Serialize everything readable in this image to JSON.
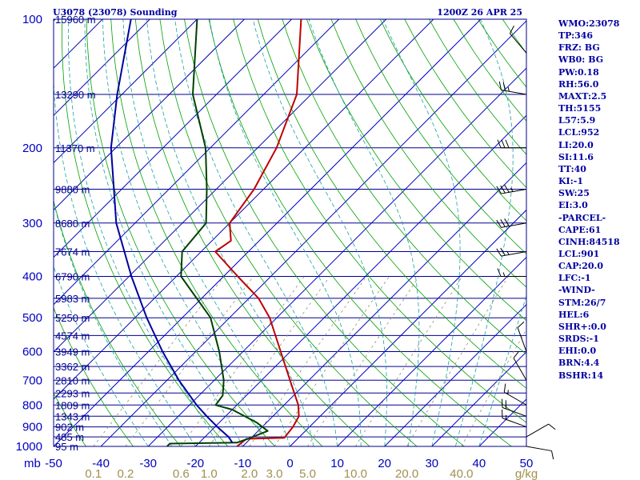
{
  "header": {
    "station": "U3078 (23078) Sounding",
    "time": "1200Z 26 APR 25"
  },
  "stats": [
    "WMO:23078",
    "TP:346",
    "FRZ: BG",
    "WB0: BG",
    "PW:0.18",
    "RH:56.0",
    "MAXT:2.5",
    "TH:5155",
    "L57:5.9",
    "LCL:952",
    "LI:20.0",
    "SI:11.6",
    "TT:40",
    "KI:-1",
    "SW:25",
    "EI:3.0",
    "-PARCEL-",
    "CAPE:61",
    "CINH:84518",
    "LCL:901",
    "CAP:20.0",
    "LFC:-1",
    "-WIND-",
    "STM:26/7",
    "HEL:6",
    "SHR+:0.0",
    "SRDS:-1",
    "EHI:0.0",
    "BRN:4.4",
    "BSHR:14"
  ],
  "chart_data": {
    "type": "line",
    "title": "",
    "xlabel": "",
    "ylabel": "mb",
    "units": {
      "pressure": "mb",
      "mixing_ratio": "g/kg"
    },
    "pressure_axis": {
      "scale": "log",
      "range": [
        1000,
        100
      ],
      "tick_labels": [
        "100",
        "200",
        "300",
        "400",
        "500",
        "600",
        "700",
        "800",
        "900",
        "1000"
      ]
    },
    "temperature_axis": {
      "range": [
        -50,
        50
      ],
      "skew_deg": 45,
      "tick_labels": [
        "-50",
        "-40",
        "-30",
        "-20",
        "-10",
        "0",
        "10",
        "20",
        "30",
        "40",
        "50"
      ]
    },
    "mixing_ratio_labels": [
      "0.1",
      "0.2",
      "0.6",
      "1.0",
      "2.0",
      "3.0",
      "5.0",
      "10.0",
      "20.0",
      "40.0"
    ],
    "height_levels": [
      {
        "p": 100,
        "label": "15960 m"
      },
      {
        "p": 150,
        "label": "13290 m"
      },
      {
        "p": 200,
        "label": "11370 m"
      },
      {
        "p": 250,
        "label": "9880 m"
      },
      {
        "p": 300,
        "label": "8680 m"
      },
      {
        "p": 350,
        "label": "7674 m"
      },
      {
        "p": 400,
        "label": "6790 m"
      },
      {
        "p": 450,
        "label": "5983 m"
      },
      {
        "p": 500,
        "label": "5250 m"
      },
      {
        "p": 550,
        "label": "4574 m"
      },
      {
        "p": 600,
        "label": "3949 m"
      },
      {
        "p": 650,
        "label": "3362 m"
      },
      {
        "p": 700,
        "label": "2810 m"
      },
      {
        "p": 750,
        "label": "2293 m"
      },
      {
        "p": 800,
        "label": "1809 m"
      },
      {
        "p": 850,
        "label": "1343 m"
      },
      {
        "p": 900,
        "label": "902 m"
      },
      {
        "p": 950,
        "label": "485 m"
      },
      {
        "p": 1000,
        "label": "95 m"
      }
    ],
    "series": [
      {
        "key": "temperature",
        "color": "#c00000",
        "points": [
          [
            1000,
            -11.2
          ],
          [
            960,
            -10.8
          ],
          [
            955,
            -3.0
          ],
          [
            900,
            -3.5
          ],
          [
            850,
            -4.5
          ],
          [
            800,
            -7.0
          ],
          [
            700,
            -14.0
          ],
          [
            600,
            -22.0
          ],
          [
            500,
            -31.5
          ],
          [
            450,
            -38.0
          ],
          [
            400,
            -47.0
          ],
          [
            350,
            -57.0
          ],
          [
            330,
            -56.0
          ],
          [
            300,
            -60.0
          ],
          [
            250,
            -62.0
          ],
          [
            200,
            -66.0
          ],
          [
            150,
            -73.0
          ],
          [
            100,
            -88.0
          ]
        ]
      },
      {
        "key": "dewpoint",
        "color": "#004000",
        "points": [
          [
            1000,
            -26.0
          ],
          [
            985,
            -26.0
          ],
          [
            980,
            -12.0
          ],
          [
            960,
            -10.5
          ],
          [
            920,
            -8.0
          ],
          [
            880,
            -12.0
          ],
          [
            820,
            -20.0
          ],
          [
            800,
            -24.5
          ],
          [
            760,
            -25.0
          ],
          [
            700,
            -28.0
          ],
          [
            600,
            -35.0
          ],
          [
            500,
            -44.0
          ],
          [
            400,
            -59.0
          ],
          [
            350,
            -64.0
          ],
          [
            300,
            -65.0
          ],
          [
            250,
            -72.0
          ],
          [
            200,
            -81.0
          ],
          [
            150,
            -95.0
          ],
          [
            100,
            -110.0
          ]
        ]
      },
      {
        "key": "parcel",
        "color": "#0000a0",
        "points": [
          [
            980,
            -13.0
          ],
          [
            950,
            -15.0
          ],
          [
            900,
            -19.5
          ],
          [
            850,
            -24.0
          ],
          [
            800,
            -28.5
          ],
          [
            700,
            -37.5
          ],
          [
            600,
            -47.0
          ],
          [
            500,
            -57.5
          ],
          [
            400,
            -69.5
          ],
          [
            300,
            -84.0
          ],
          [
            200,
            -101.0
          ],
          [
            150,
            -111.0
          ],
          [
            100,
            -124.0
          ]
        ]
      }
    ],
    "wind_barbs": [
      {
        "p": 1000,
        "dir": 100,
        "spd": 10
      },
      {
        "p": 950,
        "dir": 60,
        "spd": 10
      },
      {
        "p": 900,
        "dir": 290,
        "spd": 15
      },
      {
        "p": 850,
        "dir": 290,
        "spd": 20
      },
      {
        "p": 800,
        "dir": 300,
        "spd": 15
      },
      {
        "p": 700,
        "dir": 330,
        "spd": 10
      },
      {
        "p": 600,
        "dir": 340,
        "spd": 10
      },
      {
        "p": 400,
        "dir": 270,
        "spd": 15
      },
      {
        "p": 350,
        "dir": 260,
        "spd": 25
      },
      {
        "p": 300,
        "dir": 260,
        "spd": 30
      },
      {
        "p": 250,
        "dir": 260,
        "spd": 35
      },
      {
        "p": 200,
        "dir": 270,
        "spd": 30
      },
      {
        "p": 150,
        "dir": 280,
        "spd": 25
      },
      {
        "p": 120,
        "dir": 320,
        "spd": 10
      }
    ],
    "colors": {
      "isobar": "#00008b",
      "isotherm": "#0000c0",
      "dry_adiabat": "#00a000",
      "moist_adiabat": "#1aa0a0",
      "mixing_ratio": "#909070"
    }
  }
}
